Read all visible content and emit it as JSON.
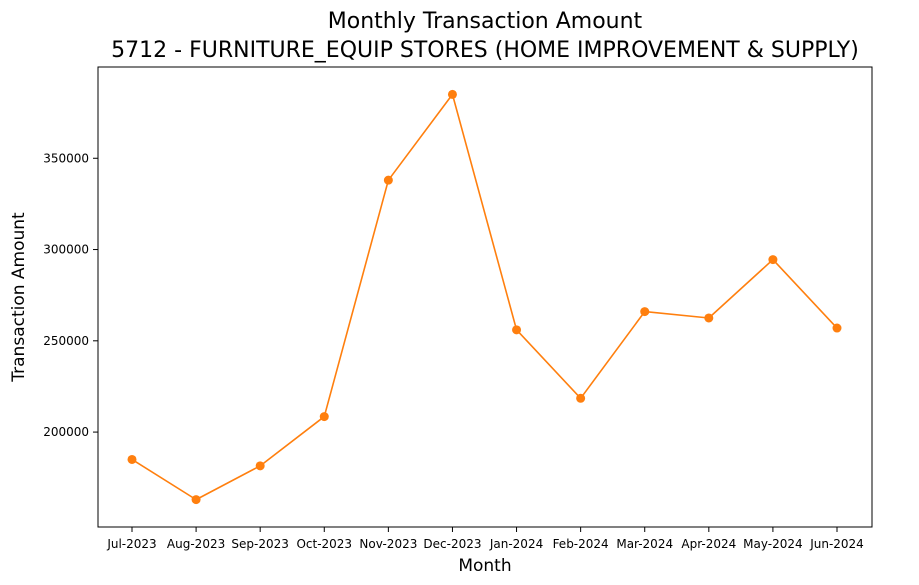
{
  "chart_data": {
    "type": "line",
    "title": "Monthly Transaction Amount",
    "subtitle": "5712 - FURNITURE_EQUIP STORES (HOME IMPROVEMENT & SUPPLY)",
    "xlabel": "Month",
    "ylabel": "Transaction Amount",
    "categories": [
      "Jul-2023",
      "Aug-2023",
      "Sep-2023",
      "Oct-2023",
      "Nov-2023",
      "Dec-2023",
      "Jan-2024",
      "Feb-2024",
      "Mar-2024",
      "Apr-2024",
      "May-2024",
      "Jun-2024"
    ],
    "series": [
      {
        "values": [
          185000,
          163000,
          181500,
          208500,
          338000,
          385000,
          256000,
          218500,
          266000,
          262500,
          294500,
          257000
        ],
        "color": "#ff7f0e"
      }
    ],
    "yticks": [
      200000,
      250000,
      300000,
      350000
    ],
    "ylim": [
      148000,
      400000
    ],
    "grid": false,
    "legend": "none"
  }
}
